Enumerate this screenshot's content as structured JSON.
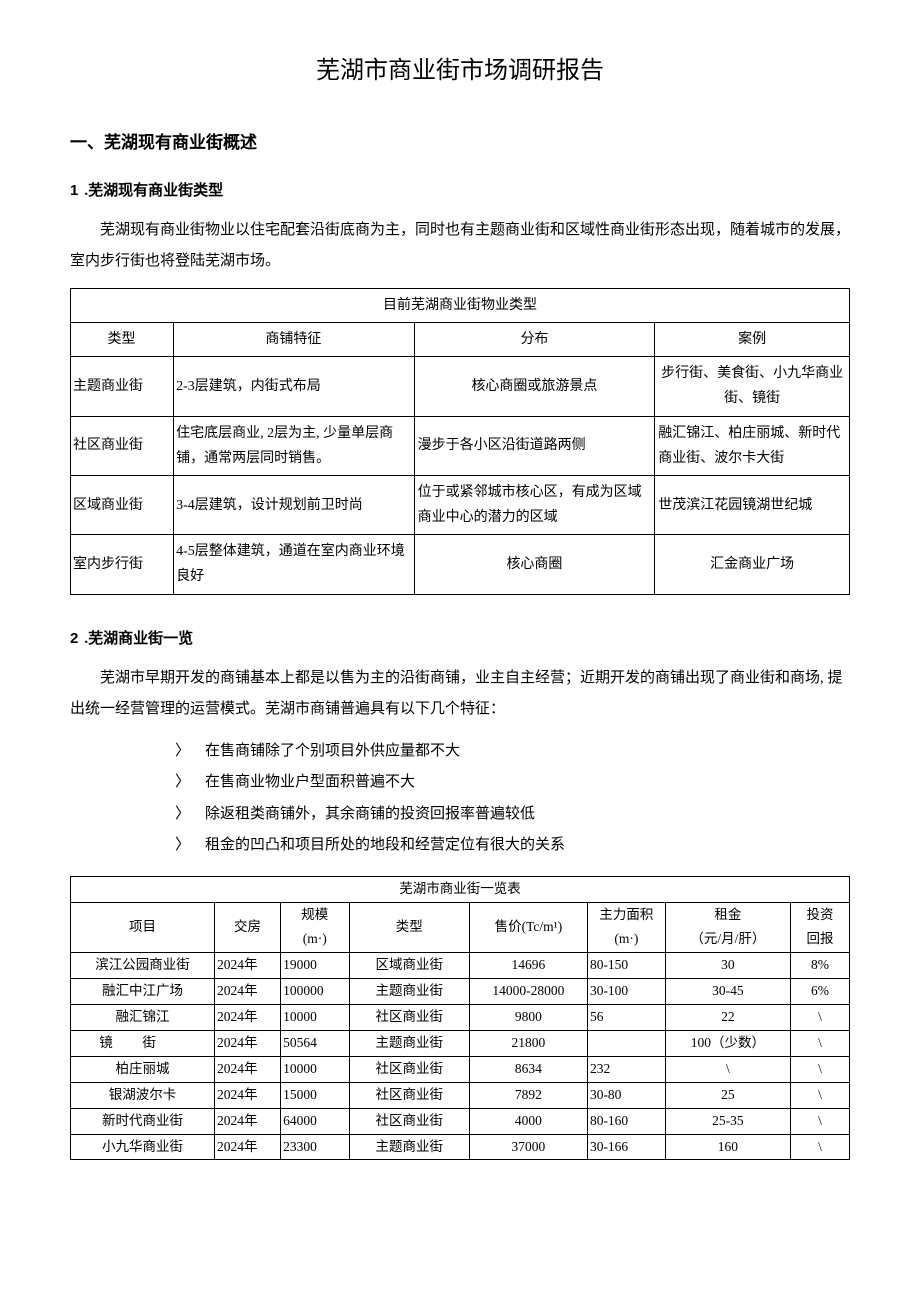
{
  "title": "芜湖市商业街市场调研报告",
  "section1": {
    "heading": "一、芜湖现有商业街概述",
    "sub1": {
      "num": "1",
      "label": ".芜湖现有商业街类型",
      "para": "芜湖现有商业街物业以住宅配套沿街底商为主，同时也有主题商业街和区域性商业街形态出现，随着城市的发展，室内步行街也将登陆芜湖市场。"
    },
    "sub2": {
      "num": "2",
      "label": ".芜湖商业街一览",
      "para": "芜湖市早期开发的商铺基本上都是以售为主的沿街商铺，业主自主经营；近期开发的商铺出现了商业街和商场, 提出统一经营管理的运营模式。芜湖市商铺普遍具有以下几个特征："
    }
  },
  "table1": {
    "title": "目前芜湖商业街物业类型",
    "columns": [
      "类型",
      "商铺特征",
      "分布",
      "案例"
    ],
    "rows": [
      [
        "主题商业街",
        "2-3层建筑，内街式布局",
        "核心商圈或旅游景点",
        "步行街、美食街、小九华商业街、镜街"
      ],
      [
        "社区商业街",
        "住宅底层商业, 2层为主, 少量单层商铺，通常两层同时销售。",
        "漫步于各小区沿街道路两侧",
        "融汇锦江、柏庄丽城、新时代商业街、波尔卡大街"
      ],
      [
        "区域商业街",
        "3-4层建筑，设计规划前卫时尚",
        "位于或紧邻城市核心区，有成为区域商业中心的潜力的区域",
        "世茂滨江花园镜湖世纪城"
      ],
      [
        "室内步行街",
        "4-5层整体建筑，通道在室内商业环境良好",
        "核心商圈",
        "汇金商业广场"
      ]
    ]
  },
  "bullets": {
    "marker": "〉",
    "items": [
      "在售商铺除了个别项目外供应量都不大",
      "在售商业物业户型面积普遍不大",
      "除返租类商铺外，其余商铺的投资回报率普遍较低",
      "租金的凹凸和项目所处的地段和经营定位有很大的关系"
    ]
  },
  "table2": {
    "title": "芜湖市商业街一览表",
    "columns": [
      "项目",
      "交房",
      "规模(m·)",
      "类型",
      "售价(Tc/m¹)",
      "主力面积(m·)",
      "租金（元/月/肝）",
      "投资回报"
    ],
    "col_split": {
      "c3_top": "规模",
      "c3_bot": "(m·)",
      "c5": "售价(Tc/m¹)",
      "c6_top": "主力面积",
      "c6_bot": "(m·)",
      "c7_top": "租金",
      "c7_bot": "（元/月/肝）",
      "c8_top": "投资",
      "c8_bot": "回报"
    },
    "rows": [
      {
        "proj": "滨江公园商业街",
        "year": "2024年",
        "scale": "19000",
        "type": "区域商业街",
        "price": "14696",
        "area": "80-150",
        "rent": "30",
        "roi": "8%"
      },
      {
        "proj": "融汇中江广场",
        "year": "2024年",
        "scale": "100000",
        "type": "主题商业街",
        "price": "14000-28000",
        "area": "30-100",
        "rent": "30-45",
        "roi": "6%"
      },
      {
        "proj": "融汇锦江",
        "year": "2024年",
        "scale": "10000",
        "type": "社区商业街",
        "price": "9800",
        "area": "56",
        "rent": "22",
        "roi": "\\"
      },
      {
        "proj_spaced": true,
        "proj": "镜街",
        "year": "2024年",
        "scale": "50564",
        "type": "主题商业街",
        "price": "21800",
        "area": "",
        "rent": "100（少数）",
        "roi": "\\"
      },
      {
        "proj": "柏庄丽城",
        "year": "2024年",
        "scale": "10000",
        "type": "社区商业街",
        "price": "8634",
        "area": "232",
        "rent": "\\",
        "roi": "\\"
      },
      {
        "proj": "银湖波尔卡",
        "year": "2024年",
        "scale": "15000",
        "type": "社区商业街",
        "price": "7892",
        "area": "30-80",
        "rent": "25",
        "roi": "\\"
      },
      {
        "proj": "新时代商业街",
        "year": "2024年",
        "scale": "64000",
        "type": "社区商业街",
        "price": "4000",
        "area": "80-160",
        "rent": "25-35",
        "roi": "\\"
      },
      {
        "proj": "小九华商业街",
        "year": "2024年",
        "scale": "23300",
        "type": "主题商业街",
        "price": "37000",
        "area": "30-166",
        "rent": "160",
        "roi": "\\"
      }
    ]
  },
  "colors": {
    "text": "#000000",
    "background": "#ffffff",
    "border": "#000000"
  }
}
